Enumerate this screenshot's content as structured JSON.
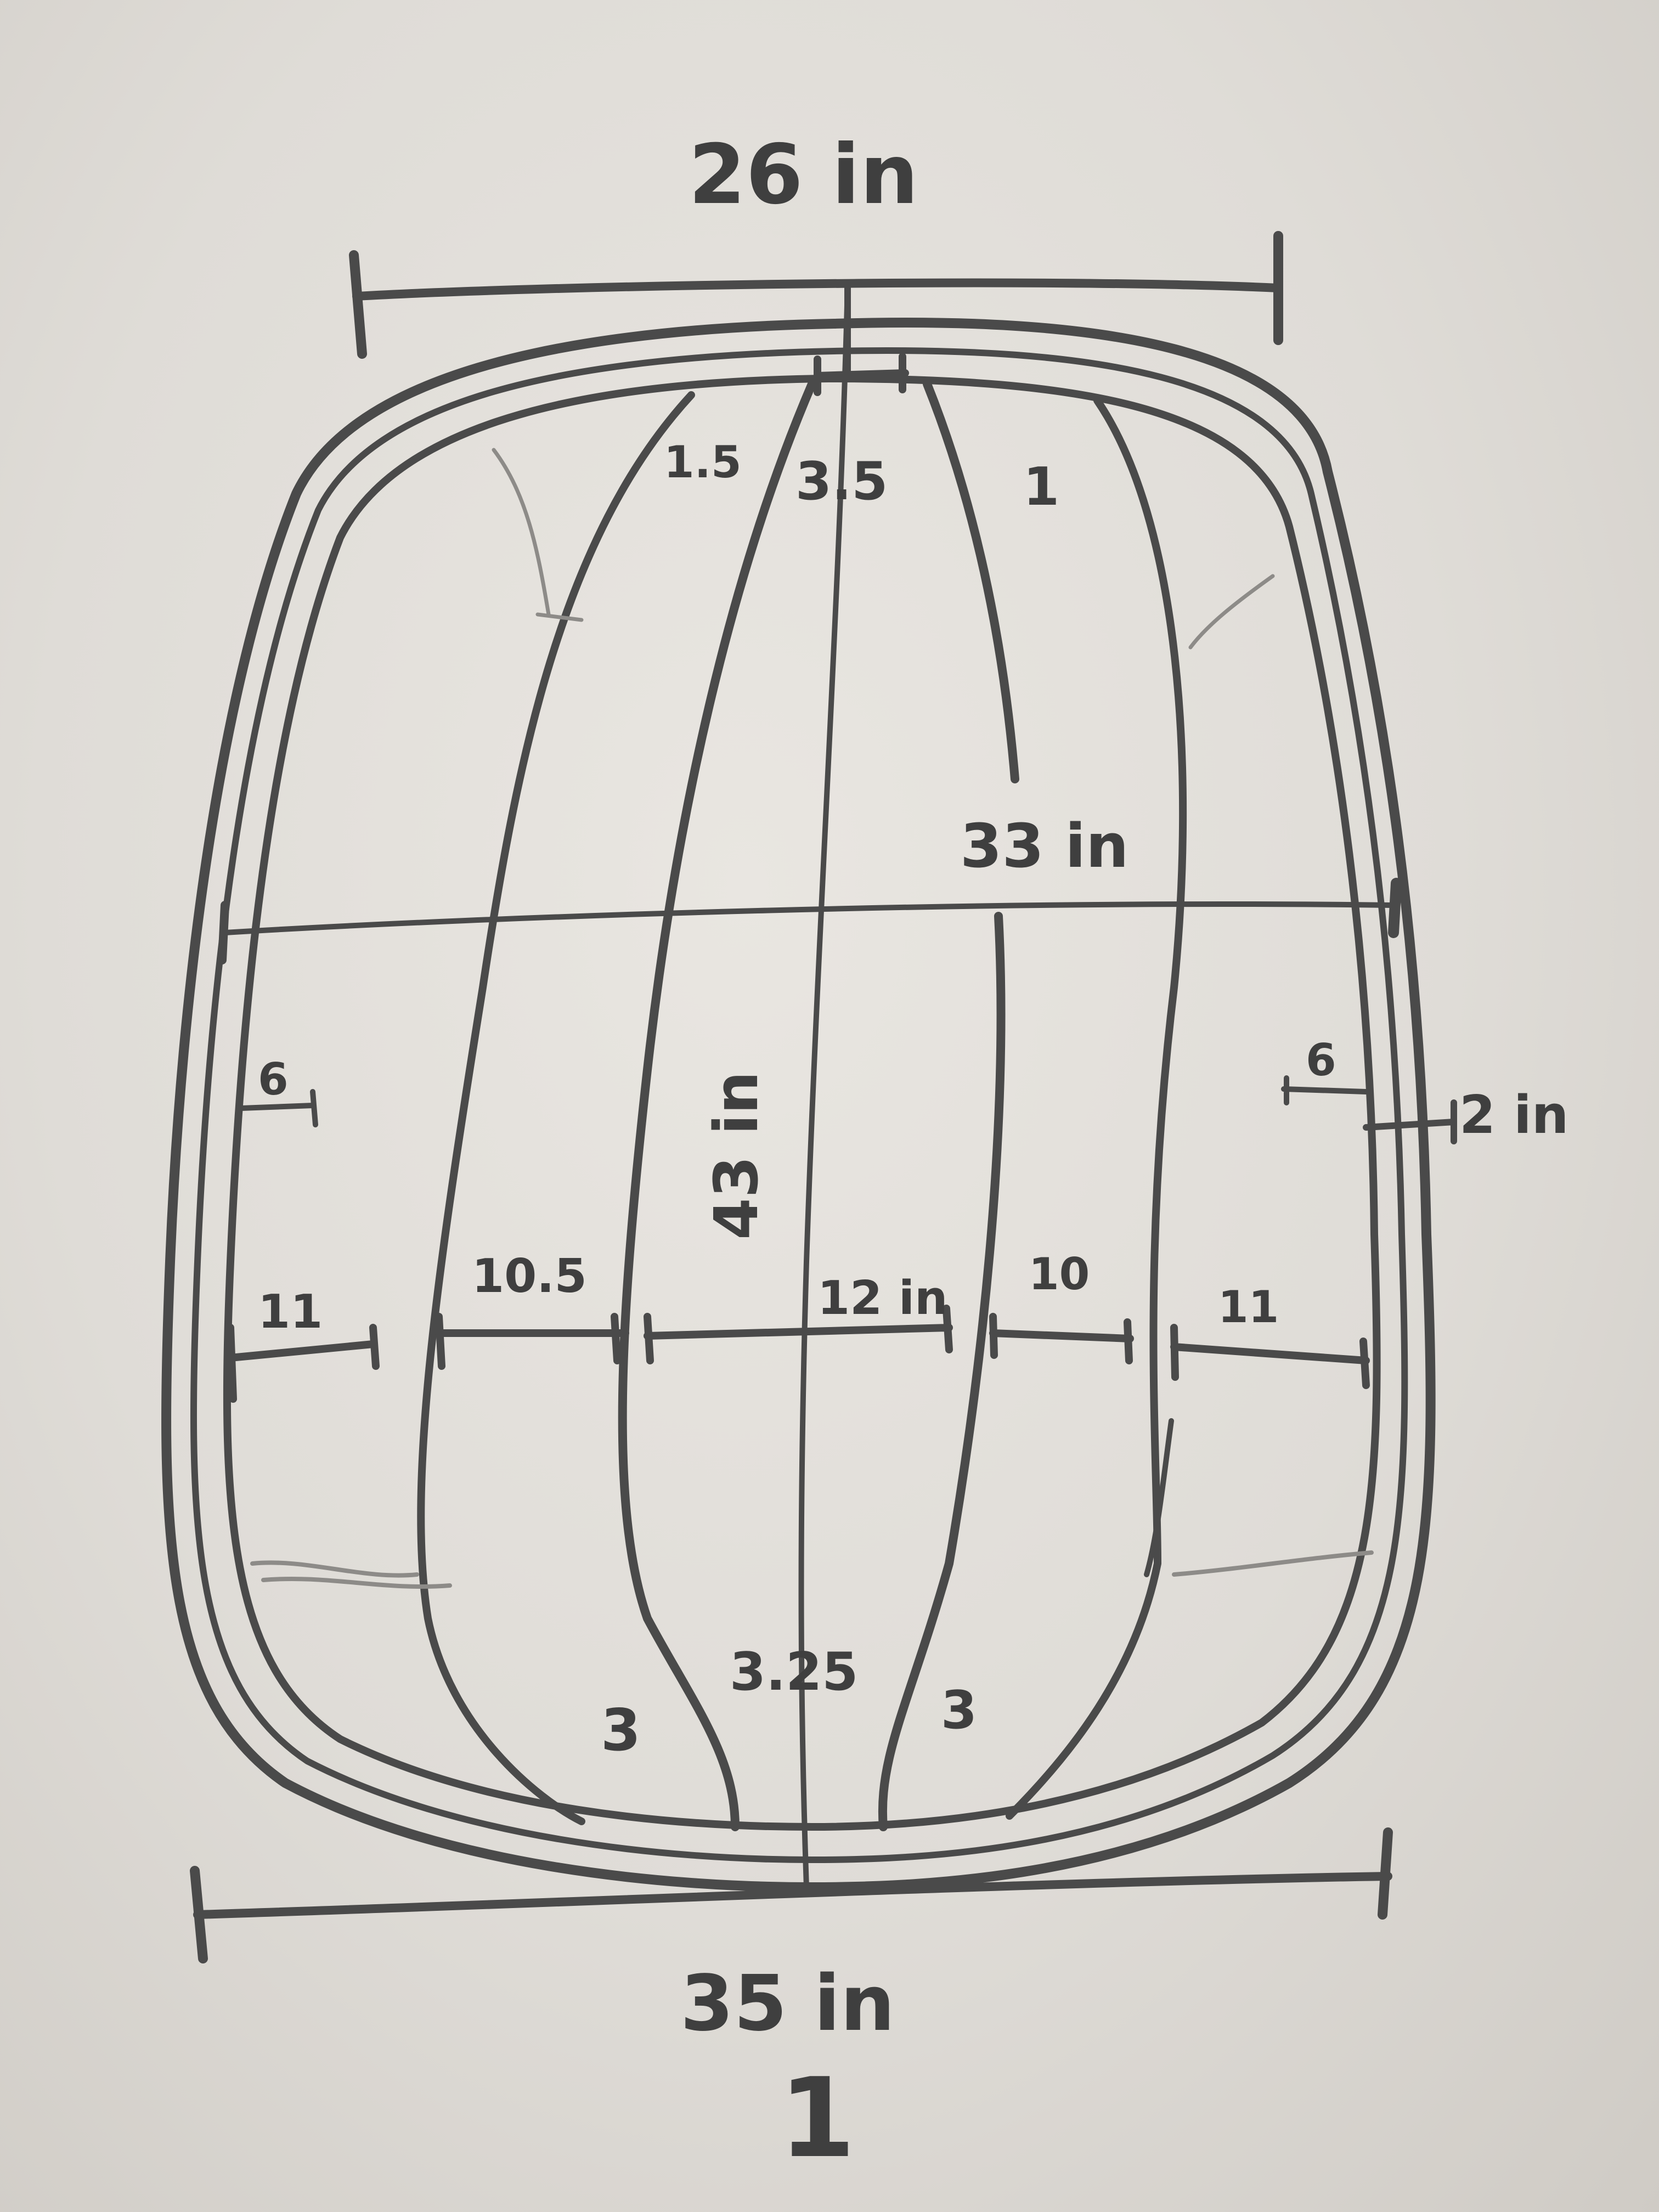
{
  "sketch": {
    "paper_color": "#e4e1dc",
    "pencil_color": "#4a4a4a",
    "labels": {
      "top_width": "26 in",
      "mid_width": "33 in",
      "bottom_width": "35 in",
      "height": "43 in",
      "top_left_gap": "1.5",
      "top_center_gap": "3.5",
      "top_right_gap": "1",
      "left_offset": "6",
      "right_offset": "6",
      "right_thickness": "2 in",
      "seg_left_outer": "11",
      "seg_left_inner": "10.5",
      "seg_center": "12 in",
      "seg_right_inner": "10",
      "seg_right_outer": "11",
      "bottom_left_gap": "3",
      "bottom_center_gap": "3.25",
      "bottom_right_gap": "3",
      "bottom_mark": "1"
    }
  }
}
